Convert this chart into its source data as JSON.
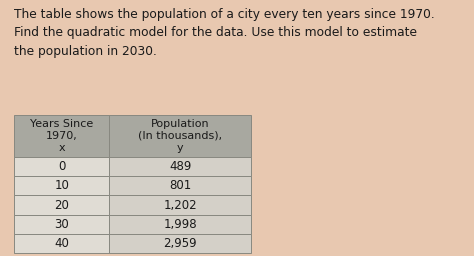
{
  "title_text": "The table shows the population of a city every ten years since 1970.\nFind the quadratic model for the data. Use this model to estimate\nthe population in 2030.",
  "col_headers": [
    "Years Since\n1970,\nx",
    "Population\n(In thousands),\ny"
  ],
  "rows": [
    [
      "0",
      "489"
    ],
    [
      "10",
      "801"
    ],
    [
      "20",
      "1,202"
    ],
    [
      "30",
      "1,998"
    ],
    [
      "40",
      "2,959"
    ]
  ],
  "bg_color": "#e8c8b0",
  "header_bg": "#a8a8a0",
  "cell_bg_left": "#e0dcd4",
  "cell_bg_right": "#d4d0c8",
  "border_color": "#888880",
  "title_fontsize": 8.8,
  "table_fontsize": 8.5,
  "title_color": "#1a1a1a",
  "cell_text_color": "#1a1a1a"
}
